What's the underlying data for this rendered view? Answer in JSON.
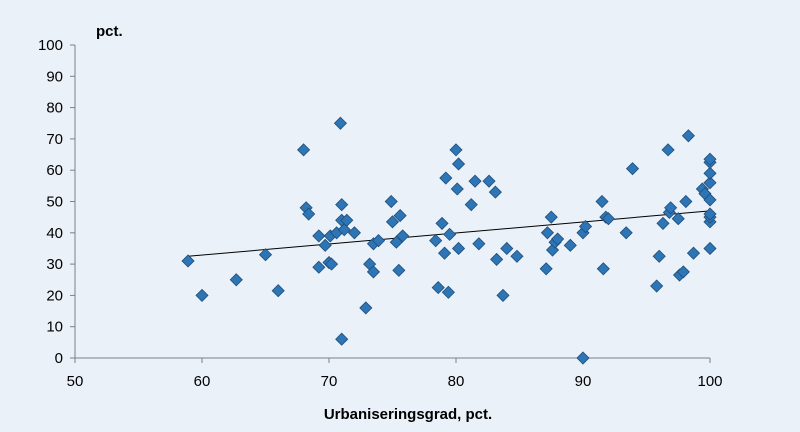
{
  "chart_data": {
    "type": "scatter",
    "title": "",
    "ylabel": "pct.",
    "xlabel": "Urbaniseringsgrad, pct.",
    "xlim": [
      50,
      100
    ],
    "ylim": [
      0,
      100
    ],
    "x_ticks": [
      50,
      60,
      70,
      80,
      90,
      100
    ],
    "y_ticks": [
      0,
      10,
      20,
      30,
      40,
      50,
      60,
      70,
      80,
      90,
      100
    ],
    "x_tick_labels": [
      "50",
      "60",
      "70",
      "80",
      "90",
      "100"
    ],
    "y_tick_labels": [
      "0",
      "10",
      "20",
      "30",
      "40",
      "50",
      "60",
      "70",
      "80",
      "90",
      "100"
    ],
    "grid": false,
    "legend": "none",
    "marker": "diamond",
    "marker_color": "#2e75b6",
    "trendline": {
      "x": [
        58.9,
        100
      ],
      "y": [
        32.5,
        47
      ]
    },
    "points": [
      [
        58.9,
        31
      ],
      [
        60,
        20
      ],
      [
        62.7,
        25
      ],
      [
        65,
        33
      ],
      [
        66,
        21.5
      ],
      [
        68,
        66.5
      ],
      [
        68.2,
        48
      ],
      [
        68.4,
        46
      ],
      [
        69.2,
        29
      ],
      [
        69.2,
        39
      ],
      [
        69.7,
        36
      ],
      [
        70,
        30.5
      ],
      [
        70.1,
        39
      ],
      [
        70.2,
        30
      ],
      [
        70.6,
        40
      ],
      [
        70.9,
        75
      ],
      [
        71,
        49
      ],
      [
        71,
        44
      ],
      [
        71,
        6
      ],
      [
        71.2,
        41
      ],
      [
        71.4,
        44
      ],
      [
        72,
        40
      ],
      [
        72.9,
        16
      ],
      [
        73.2,
        30
      ],
      [
        73.5,
        27.5
      ],
      [
        73.5,
        36.5
      ],
      [
        73.9,
        37.5
      ],
      [
        74.9,
        50
      ],
      [
        75,
        43.5
      ],
      [
        75.3,
        37
      ],
      [
        75.5,
        28
      ],
      [
        75.6,
        45.5
      ],
      [
        75.8,
        39
      ],
      [
        78.4,
        37.5
      ],
      [
        78.6,
        22.5
      ],
      [
        78.9,
        43
      ],
      [
        79.1,
        33.5
      ],
      [
        79.2,
        57.5
      ],
      [
        79.4,
        21
      ],
      [
        79.5,
        39.5
      ],
      [
        80,
        66.5
      ],
      [
        80.1,
        54
      ],
      [
        80.2,
        62
      ],
      [
        80.2,
        35
      ],
      [
        81.2,
        49
      ],
      [
        81.5,
        56.5
      ],
      [
        81.8,
        36.5
      ],
      [
        82.6,
        56.5
      ],
      [
        83.1,
        53
      ],
      [
        83.2,
        31.5
      ],
      [
        83.7,
        20
      ],
      [
        84,
        35
      ],
      [
        84.8,
        32.5
      ],
      [
        87.1,
        28.5
      ],
      [
        87.2,
        40
      ],
      [
        87.5,
        45
      ],
      [
        87.6,
        34.5
      ],
      [
        87.8,
        37
      ],
      [
        88,
        38
      ],
      [
        89,
        36
      ],
      [
        90,
        0
      ],
      [
        90,
        40
      ],
      [
        90.2,
        42
      ],
      [
        91.5,
        50
      ],
      [
        91.6,
        28.5
      ],
      [
        91.8,
        45
      ],
      [
        92,
        44.5
      ],
      [
        93.4,
        40
      ],
      [
        93.9,
        60.5
      ],
      [
        95.8,
        23
      ],
      [
        96,
        32.5
      ],
      [
        96.3,
        43
      ],
      [
        96.7,
        66.5
      ],
      [
        96.8,
        46.5
      ],
      [
        96.9,
        48
      ],
      [
        97.5,
        44.5
      ],
      [
        97.6,
        26.5
      ],
      [
        97.9,
        27.5
      ],
      [
        98.1,
        50
      ],
      [
        98.3,
        71
      ],
      [
        98.7,
        33.5
      ],
      [
        99.4,
        54
      ],
      [
        99.6,
        52.5
      ],
      [
        100,
        35
      ],
      [
        100,
        43.5
      ],
      [
        100,
        45
      ],
      [
        100,
        46
      ],
      [
        100,
        50.5
      ],
      [
        100,
        56
      ],
      [
        100,
        59
      ],
      [
        100,
        62.5
      ],
      [
        100,
        63.5
      ]
    ]
  }
}
